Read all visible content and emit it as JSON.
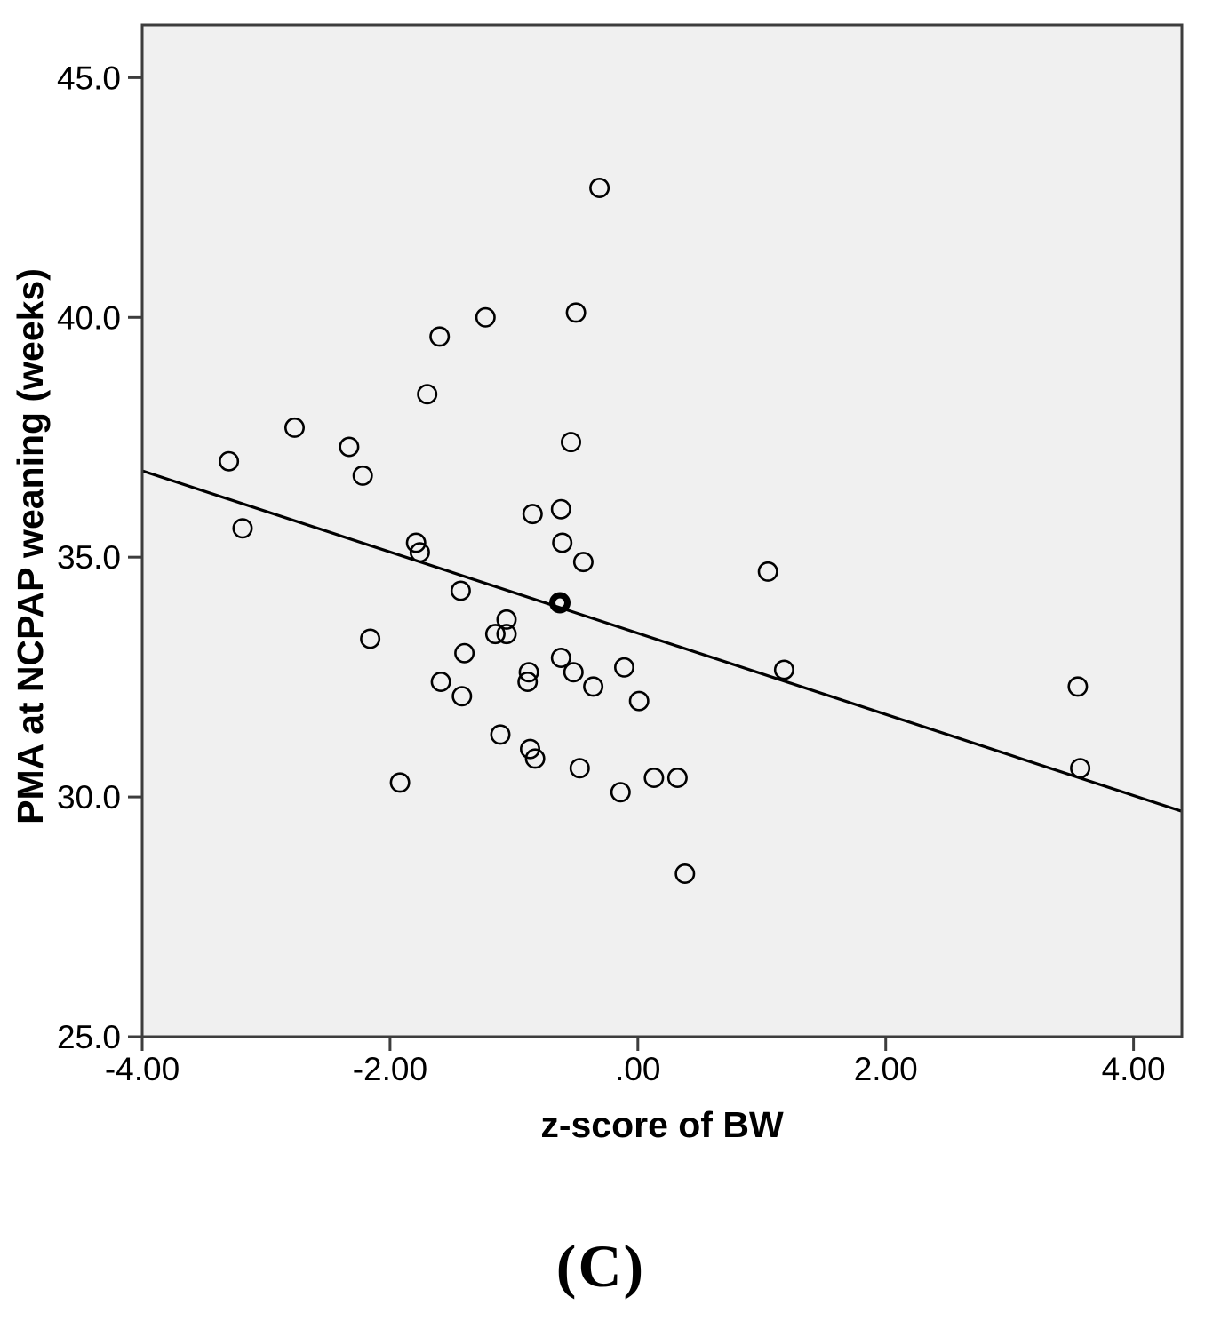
{
  "figure": {
    "caption": "(C)"
  },
  "chart_data": {
    "type": "scatter",
    "title": "",
    "xlabel": "z-score of BW",
    "ylabel": "PMA at NCPAP weaning (weeks)",
    "xlim": [
      -4.0,
      4.39
    ],
    "ylim": [
      25.0,
      46.1
    ],
    "x_tick_values": [
      -4.0,
      -2.0,
      0.0,
      2.0,
      4.0
    ],
    "x_tick_labels": [
      "-4.00",
      "-2.00",
      ".00",
      "2.00",
      "4.00"
    ],
    "y_tick_values": [
      25.0,
      30.0,
      35.0,
      40.0,
      45.0
    ],
    "y_tick_labels": [
      "25.0",
      "30.0",
      "35.0",
      "40.0",
      "45.0"
    ],
    "grid": false,
    "legend_position": "none",
    "marker_style": "open-circle",
    "points": [
      [
        -3.3,
        37.0
      ],
      [
        -3.19,
        35.6
      ],
      [
        -2.77,
        37.7
      ],
      [
        -2.33,
        37.3
      ],
      [
        -2.22,
        36.7
      ],
      [
        -2.16,
        33.3
      ],
      [
        -1.92,
        30.3
      ],
      [
        -1.79,
        35.3
      ],
      [
        -1.76,
        35.1
      ],
      [
        -1.7,
        38.4
      ],
      [
        -1.6,
        39.6
      ],
      [
        -1.59,
        32.4
      ],
      [
        -1.43,
        34.3
      ],
      [
        -1.42,
        32.1
      ],
      [
        -1.4,
        33.0
      ],
      [
        -1.23,
        40.0
      ],
      [
        -1.15,
        33.4
      ],
      [
        -1.11,
        31.3
      ],
      [
        -1.06,
        33.7
      ],
      [
        -1.06,
        33.4
      ],
      [
        -0.89,
        32.4
      ],
      [
        -0.88,
        32.6
      ],
      [
        -0.87,
        31.0
      ],
      [
        -0.85,
        35.9
      ],
      [
        -0.83,
        30.8
      ],
      [
        -0.63,
        34.05,
        1
      ],
      [
        -0.62,
        36.0
      ],
      [
        -0.62,
        32.9
      ],
      [
        -0.61,
        35.3
      ],
      [
        -0.54,
        37.4
      ],
      [
        -0.52,
        32.6
      ],
      [
        -0.5,
        40.1
      ],
      [
        -0.47,
        30.6
      ],
      [
        -0.44,
        34.9
      ],
      [
        -0.36,
        32.3
      ],
      [
        -0.31,
        42.7
      ],
      [
        -0.14,
        30.1
      ],
      [
        -0.11,
        32.7
      ],
      [
        0.01,
        32.0
      ],
      [
        0.13,
        30.4
      ],
      [
        0.32,
        30.4
      ],
      [
        0.38,
        28.4
      ],
      [
        1.05,
        34.7
      ],
      [
        1.18,
        32.65
      ],
      [
        3.55,
        32.3
      ],
      [
        3.57,
        30.6
      ]
    ],
    "trendline": {
      "x1": -4.0,
      "y1": 36.8,
      "x2": 4.39,
      "y2": 29.7
    },
    "colors": {
      "page_background": "#ffffff",
      "plot_background": "#f0f0f0",
      "frame": "#3d3d3d",
      "marker": "#000000",
      "trendline": "#000000",
      "text": "#000000"
    }
  }
}
